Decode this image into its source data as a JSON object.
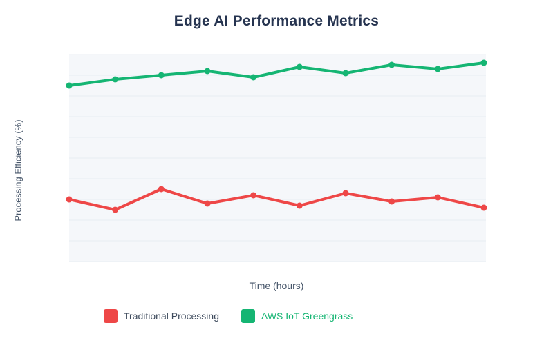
{
  "page": {
    "background": "#ffffff"
  },
  "chart_data": {
    "type": "line",
    "title": "Edge AI Performance Metrics",
    "xlabel": "Time (hours)",
    "ylabel": "Processing Efficiency (%)",
    "x": [
      1,
      2,
      3,
      4,
      5,
      6,
      7,
      8,
      9,
      10
    ],
    "ylim": [
      0,
      100
    ],
    "grid": true,
    "gridline_step": 10,
    "tick_labels_visible": false,
    "legend_position": "bottom",
    "plot_background": "#f5f7fa",
    "gridline_color": "#e8ecf3",
    "series": [
      {
        "name": "Traditional Processing",
        "color": "#ee4747",
        "values": [
          30,
          25,
          35,
          28,
          32,
          27,
          33,
          29,
          31,
          26
        ]
      },
      {
        "name": "AWS IoT Greengrass",
        "color": "#15b573",
        "values": [
          85,
          88,
          90,
          92,
          89,
          94,
          91,
          95,
          93,
          96
        ]
      }
    ]
  },
  "style": {
    "title_color": "#263450",
    "axis_label_color": "#47566a"
  },
  "legend": {
    "items": [
      {
        "label": "Traditional Processing",
        "swatch_color": "#ee4747",
        "label_color": "#3d4a5c"
      },
      {
        "label": "AWS IoT Greengrass",
        "swatch_color": "#15b573",
        "label_color": "#15b573"
      }
    ]
  }
}
